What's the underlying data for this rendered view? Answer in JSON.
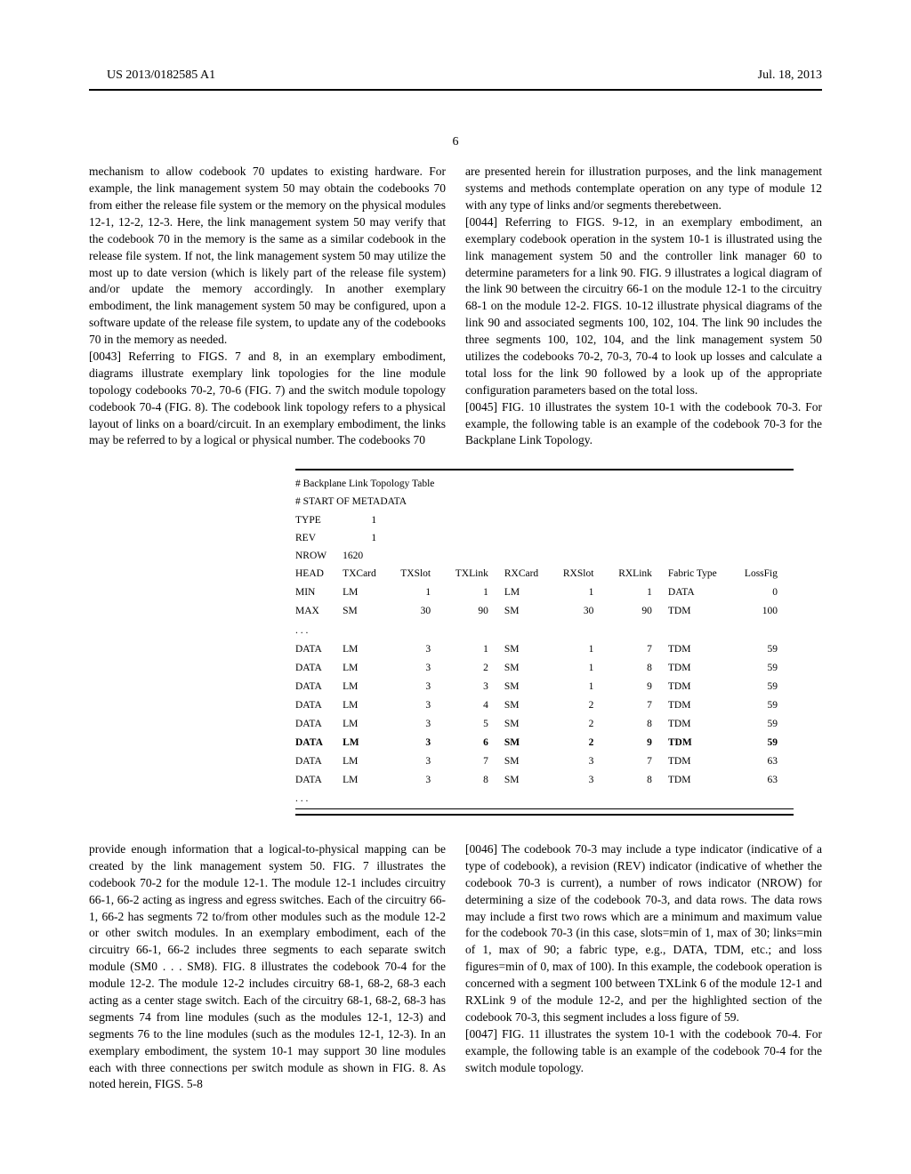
{
  "header": {
    "pub_number": "US 2013/0182585 A1",
    "pub_date": "Jul. 18, 2013"
  },
  "page_number": "6",
  "col_left_top": {
    "para1": "mechanism to allow codebook 70 updates to existing hard­ware. For example, the link management system 50 may obtain the codebooks 70 from either the release file system or the memory on the physical modules 12-1, 12-2, 12-3. Here, the link management system 50 may verify that the codebook 70 in the memory is the same as a similar codebook in the release file system. If not, the link management system 50 may utilize the most up to date version (which is likely part of the release file system) and/or update the memory accord­ingly. In another exemplary embodiment, the link manage­ment system 50 may be configured, upon a software update of the release file system, to update any of the codebooks 70 in the memory as needed.",
    "para2_ref": "[0043]",
    "para2": "    Referring to FIGS. 7 and 8, in an exemplary embodi­ment, diagrams illustrate exemplary link topologies for the line module topology codebooks 70-2, 70-6 (FIG. 7) and the switch module topology codebook 70-4 (FIG. 8). The code­book link topology refers to a physical layout of links on a board/circuit. In an exemplary embodiment, the links may be referred to by a logical or physical number. The codebooks 70"
  },
  "col_right_top": {
    "para1": "are presented herein for illustration purposes, and the link management systems and methods contemplate operation on any type of module 12 with any type of links and/or segments therebetween.",
    "para2_ref": "[0044]",
    "para2": "    Referring to FIGS. 9-12, in an exemplary embodi­ment, an exemplary codebook operation in the system 10-1 is illustrated using the link management system 50 and the controller link manager 60 to determine parameters for a link 90. FIG. 9 illustrates a logical diagram of the link 90 between the circuitry 66-1 on the module 12-1 to the circuitry 68-1 on the module 12-2. FIGS. 10-12 illustrate physical diagrams of the link 90 and associated segments 100, 102, 104. The link 90 includes the three segments 100, 102, 104, and the link management system 50 utilizes the codebooks 70-2, 70-3, 70-4 to look up losses and calculate a total loss for the link 90 followed by a look up of the appropriate configuration param­eters based on the total loss.",
    "para3_ref": "[0045]",
    "para3": "    FIG. 10 illustrates the system 10-1 with the code­book 70-3. For example, the following table is an example of the codebook 70-3 for the Backplane Link Topology."
  },
  "table": {
    "title1": "# Backplane Link Topology Table",
    "title2": "# START OF METADATA",
    "meta": [
      [
        "TYPE",
        "1"
      ],
      [
        "REV",
        "1"
      ],
      [
        "NROW",
        "1620"
      ]
    ],
    "head": [
      "HEAD",
      "TXCard",
      "TXSlot",
      "TXLink",
      "RXCard",
      "RXSlot",
      "RXLink",
      "Fabric Type",
      "LossFig"
    ],
    "min": [
      "MIN",
      "LM",
      "1",
      "1",
      "LM",
      "1",
      "1",
      "DATA",
      "0"
    ],
    "max": [
      "MAX",
      "SM",
      "30",
      "90",
      "SM",
      "30",
      "90",
      "TDM",
      "100"
    ],
    "ellipsis": ". . .",
    "data_rows": [
      [
        "DATA",
        "LM",
        "3",
        "1",
        "SM",
        "1",
        "7",
        "TDM",
        "59"
      ],
      [
        "DATA",
        "LM",
        "3",
        "2",
        "SM",
        "1",
        "8",
        "TDM",
        "59"
      ],
      [
        "DATA",
        "LM",
        "3",
        "3",
        "SM",
        "1",
        "9",
        "TDM",
        "59"
      ],
      [
        "DATA",
        "LM",
        "3",
        "4",
        "SM",
        "2",
        "7",
        "TDM",
        "59"
      ],
      [
        "DATA",
        "LM",
        "3",
        "5",
        "SM",
        "2",
        "8",
        "TDM",
        "59"
      ]
    ],
    "bold_row": [
      "DATA",
      "LM",
      "3",
      "6",
      "SM",
      "2",
      "9",
      "TDM",
      "59"
    ],
    "data_rows2": [
      [
        "DATA",
        "LM",
        "3",
        "7",
        "SM",
        "3",
        "7",
        "TDM",
        "63"
      ],
      [
        "DATA",
        "LM",
        "3",
        "8",
        "SM",
        "3",
        "8",
        "TDM",
        "63"
      ]
    ]
  },
  "col_left_bottom": {
    "para1": "provide enough information that a logical-to-physical map­ping can be created by the link management system 50. FIG. 7 illustrates the codebook 70-2 for the module 12-1. The module 12-1 includes circuitry 66-1, 66-2 acting as ingress and egress switches. Each of the circuitry 66-1, 66-2 has segments 72 to/from other modules such as the module 12-2 or other switch modules. In an exemplary embodiment, each of the circuitry 66-1, 66-2 includes three segments to each separate switch module (SM0 . . . SM8). FIG. 8 illustrates the codebook 70-4 for the module 12-2. The module 12-2 includes circuitry 68-1, 68-2, 68-3 each acting as a center stage switch. Each of the circuitry 68-1, 68-2, 68-3 has seg­ments 74 from line modules (such as the modules 12-1, 12-3) and segments 76 to the line modules (such as the modules 12-1, 12-3). In an exemplary embodiment, the system 10-1 may support 30 line modules each with three connections per switch module as shown in FIG. 8. As noted herein, FIGS. 5-8"
  },
  "col_right_bottom": {
    "para1_ref": "[0046]",
    "para1": "    The codebook 70-3 may include a type indicator (indicative of a type of codebook), a revision (REV) indicator (indicative of whether the codebook 70-3 is current), a num­ber of rows indicator (NROW) for determining a size of the codebook 70-3, and data rows. The data rows may include a first two rows which are a minimum and maximum value for the codebook 70-3 (in this case, slots=min of 1, max of 30; links=min of 1, max of 90; a fabric type, e.g., DATA, TDM, etc.; and loss figures=min of 0, max of 100). In this example, the codebook operation is concerned with a segment 100 between TXLink 6 of the module 12-1 and RXLink 9 of the module 12-2, and per the highlighted section of the codebook 70-3, this segment includes a loss figure of 59.",
    "para2_ref": "[0047]",
    "para2": "    FIG. 11 illustrates the system 10-1 with the code­book 70-4. For example, the following table is an example of the codebook 70-4 for the switch module topology."
  }
}
